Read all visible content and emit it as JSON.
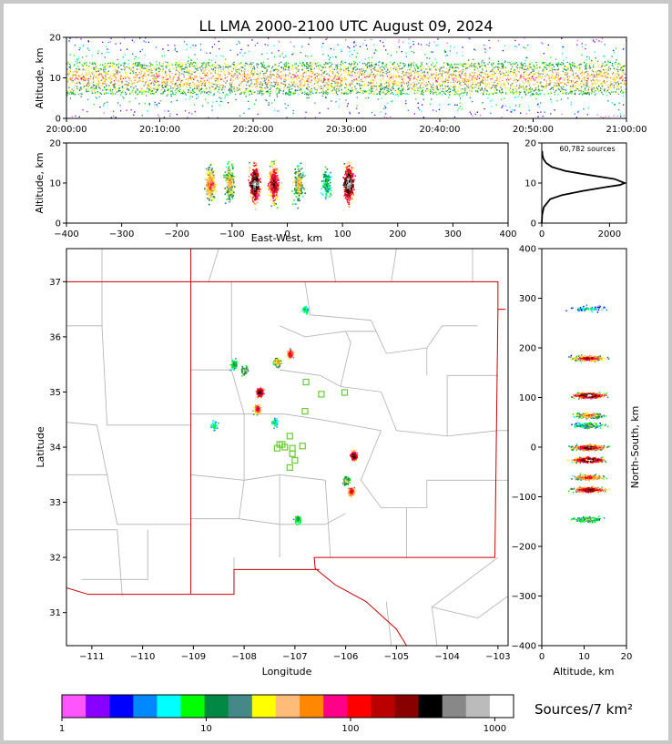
{
  "title": "LL LMA 2000-2100 UTC August 09, 2024",
  "colors": {
    "colorbar": [
      "#ff55ff",
      "#8800ff",
      "#0000ff",
      "#0088ff",
      "#00ffff",
      "#00ff00",
      "#008844",
      "#448888",
      "#ffff00",
      "#ffbb77",
      "#ff8800",
      "#ff0088",
      "#ff0000",
      "#bb0000",
      "#880000",
      "#000000",
      "#888888",
      "#bbbbbb",
      "#ffffff"
    ],
    "state_border": "#cc0000",
    "county": "#b0b0b0",
    "station": "#66cc33"
  },
  "chart_data": [
    {
      "type": "scatter",
      "panel": "time-altitude",
      "ylabel": "Altitude, km",
      "ylim": [
        0,
        20
      ],
      "yticks": [
        "0",
        "10",
        "20"
      ],
      "xticks": [
        "20:00:00",
        "20:10:00",
        "20:20:00",
        "20:30:00",
        "20:40:00",
        "20:50:00",
        "21:00:00"
      ],
      "xlim_minutes": [
        0,
        60
      ],
      "alt_core_km": [
        6,
        14
      ]
    },
    {
      "type": "scatter",
      "panel": "east-west-altitude",
      "xlabel": "East-West, km",
      "ylabel": "Altitude, km",
      "xlim": [
        -400,
        400
      ],
      "ylim": [
        0,
        20
      ],
      "xticks": [
        "−400",
        "−300",
        "−200",
        "−100",
        "0",
        "100",
        "200",
        "300",
        "400"
      ],
      "yticks": [
        "0",
        "10",
        "20"
      ],
      "clusters_ew_km": [
        -140,
        -105,
        -60,
        -25,
        20,
        70,
        110
      ]
    },
    {
      "type": "line",
      "panel": "altitude-histogram",
      "annotation": "60,782 sources",
      "xlim": [
        0,
        2500
      ],
      "ylim": [
        0,
        20
      ],
      "xticks": [
        "0",
        "2000"
      ],
      "yticks": [
        "0",
        "10",
        "20"
      ],
      "alt_km": [
        0,
        2,
        4,
        6,
        7,
        8,
        9,
        9.5,
        10,
        11,
        12,
        13,
        14,
        15,
        16,
        17,
        18
      ],
      "count": [
        0,
        10,
        60,
        250,
        600,
        1200,
        1900,
        2300,
        2450,
        2150,
        1400,
        700,
        300,
        130,
        50,
        20,
        10
      ]
    },
    {
      "type": "scatter",
      "panel": "plan-view",
      "xlabel": "Longitude",
      "ylabel": "Latitude",
      "xlim": [
        -111.5,
        -102.8
      ],
      "ylim": [
        30.4,
        37.6
      ],
      "xticks": [
        "−111",
        "−110",
        "−109",
        "−108",
        "−107",
        "−106",
        "−105",
        "−104",
        "−103"
      ],
      "yticks": [
        "31",
        "32",
        "33",
        "34",
        "35",
        "36",
        "37"
      ],
      "storm_cells": [
        {
          "lon": -107.7,
          "lat": 35.0
        },
        {
          "lon": -107.75,
          "lat": 34.7
        },
        {
          "lon": -107.1,
          "lat": 35.7
        },
        {
          "lon": -107.35,
          "lat": 35.55
        },
        {
          "lon": -108.0,
          "lat": 35.4
        },
        {
          "lon": -105.85,
          "lat": 33.85
        },
        {
          "lon": -105.9,
          "lat": 33.2
        },
        {
          "lon": -106.0,
          "lat": 33.4
        },
        {
          "lon": -106.95,
          "lat": 32.7
        },
        {
          "lon": -106.8,
          "lat": 36.5
        },
        {
          "lon": -108.6,
          "lat": 34.4
        },
        {
          "lon": -107.4,
          "lat": 34.45
        },
        {
          "lon": -108.2,
          "lat": 35.5
        }
      ],
      "stations": [
        {
          "lon": -106.78,
          "lat": 35.18
        },
        {
          "lon": -106.48,
          "lat": 34.96
        },
        {
          "lon": -106.02,
          "lat": 34.99
        },
        {
          "lon": -106.8,
          "lat": 34.65
        },
        {
          "lon": -107.1,
          "lat": 34.2
        },
        {
          "lon": -107.3,
          "lat": 34.05
        },
        {
          "lon": -107.35,
          "lat": 33.98
        },
        {
          "lon": -107.2,
          "lat": 34.0
        },
        {
          "lon": -107.05,
          "lat": 33.98
        },
        {
          "lon": -106.85,
          "lat": 34.02
        },
        {
          "lon": -107.05,
          "lat": 33.88
        },
        {
          "lon": -107.0,
          "lat": 33.76
        },
        {
          "lon": -107.1,
          "lat": 33.63
        },
        {
          "lon": -107.25,
          "lat": 34.05
        }
      ]
    },
    {
      "type": "scatter",
      "panel": "altitude-north-south",
      "xlabel": "Altitude, km",
      "ylabel": "North-South, km",
      "xlim": [
        0,
        20
      ],
      "ylim": [
        -400,
        400
      ],
      "xticks": [
        "0",
        "10",
        "20"
      ],
      "yticks": [
        "−400",
        "−300",
        "−200",
        "−100",
        "0",
        "100",
        "200",
        "300",
        "400"
      ],
      "clusters_ns_km": [
        280,
        180,
        105,
        65,
        45,
        0,
        -25,
        -60,
        -85,
        -145
      ]
    },
    {
      "type": "heatmap",
      "panel": "colorbar",
      "label": "Sources/7 km²",
      "ticks": [
        "1",
        "10",
        "100",
        "1000"
      ]
    }
  ]
}
